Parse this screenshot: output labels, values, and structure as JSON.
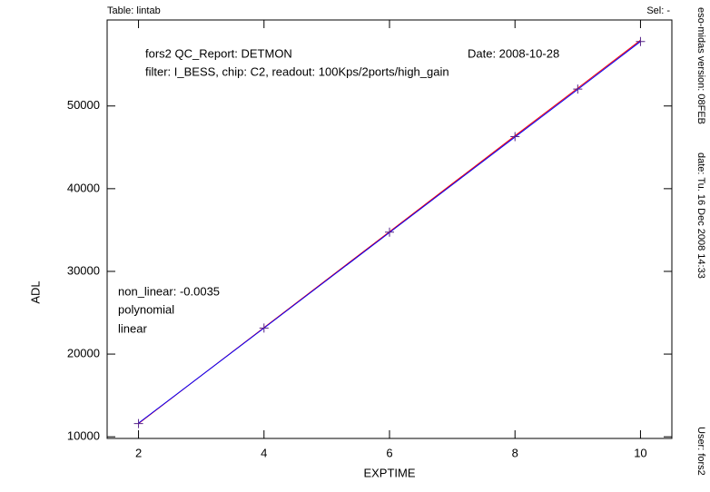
{
  "chart_data": {
    "type": "line",
    "header_left": "Table: lintab",
    "header_right": "Sel: -",
    "title": "fors2 QC_Report: DETMON",
    "date": "Date: 2008-10-28",
    "subtitle": "filter: I_BESS, chip: C2, readout: 100Kps/2ports/high_gain",
    "annotation": "non_linear: -0.0035",
    "side_version": "eso-midas version: 08FEB",
    "side_date": "date: Tu. 16 Dec 2008 14:33",
    "side_user": "User: fors2",
    "xlabel": "EXPTIME",
    "ylabel": "ADL",
    "x": [
      2,
      4,
      6,
      8,
      9,
      10
    ],
    "points": {
      "color": "#552288",
      "values": [
        11600,
        23150,
        34750,
        46300,
        52050,
        57800
      ]
    },
    "series": [
      {
        "name": "polynomial",
        "color": "#ff0000",
        "values": [
          11600,
          23200,
          34800,
          46400,
          52150,
          57950
        ]
      },
      {
        "name": "linear",
        "color": "#0000ff",
        "values": [
          11650,
          23150,
          34700,
          46250,
          52000,
          57800
        ]
      }
    ],
    "xlim": [
      1.5,
      10.5
    ],
    "ylim": [
      9800,
      60400
    ],
    "xticks": [
      2,
      4,
      6,
      8,
      10
    ],
    "yticks": [
      10000,
      20000,
      30000,
      40000,
      50000
    ]
  }
}
